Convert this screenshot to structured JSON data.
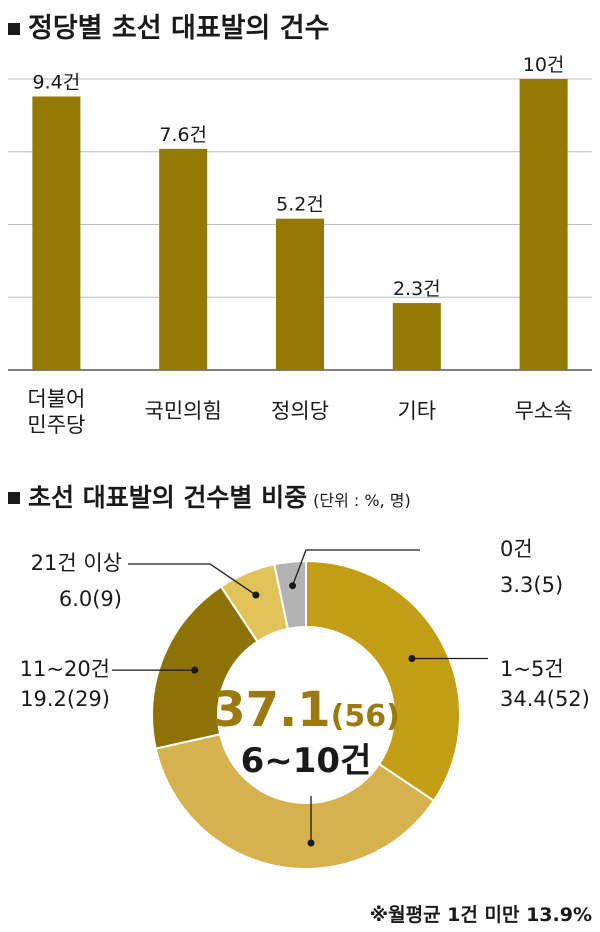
{
  "titles": {
    "bar_title": "정당별 초선 대표발의 건수",
    "donut_title": "초선 대표발의 건수별 비중",
    "donut_unit": "(단위 : %, 명)"
  },
  "footnote": "※월평균 1건 미만 13.9%",
  "colors": {
    "bar": "#937a04",
    "donut_1_5": "#c39d16",
    "donut_6_10": "#d6b24e",
    "donut_11_20": "#8e7208",
    "donut_21plus": "#e2c35a",
    "donut_0": "#b3b3b3",
    "center_text": "#9a7a0e"
  },
  "chart_data": [
    {
      "type": "bar",
      "title": "정당별 초선 대표발의 건수",
      "categories": [
        "더불어\n민주당",
        "국민의힘",
        "정의당",
        "기타",
        "무소속"
      ],
      "values": [
        9.4,
        7.6,
        5.2,
        2.3,
        10
      ],
      "data_labels": [
        "9.4건",
        "7.6건",
        "5.2건",
        "2.3건",
        "10건"
      ],
      "ylim": [
        0,
        10
      ],
      "grid": true
    },
    {
      "type": "pie",
      "style": "donut",
      "title": "초선 대표발의 건수별 비중",
      "unit": "(단위 : %, 명)",
      "slices": [
        {
          "label": "1~5건",
          "value": 34.4,
          "count": 52,
          "value_label": "34.4(52)"
        },
        {
          "label": "6~10건",
          "value": 37.1,
          "count": 56,
          "value_label": "37.1(56)"
        },
        {
          "label": "11~20건",
          "value": 19.2,
          "count": 29,
          "value_label": "19.2(29)"
        },
        {
          "label": "21건 이상",
          "value": 6.0,
          "count": 9,
          "value_label": "6.0(9)"
        },
        {
          "label": "0건",
          "value": 3.3,
          "count": 5,
          "value_label": "3.3(5)"
        }
      ],
      "center": {
        "big": "37.1",
        "paren": "(56)",
        "label": "6~10건"
      }
    }
  ]
}
